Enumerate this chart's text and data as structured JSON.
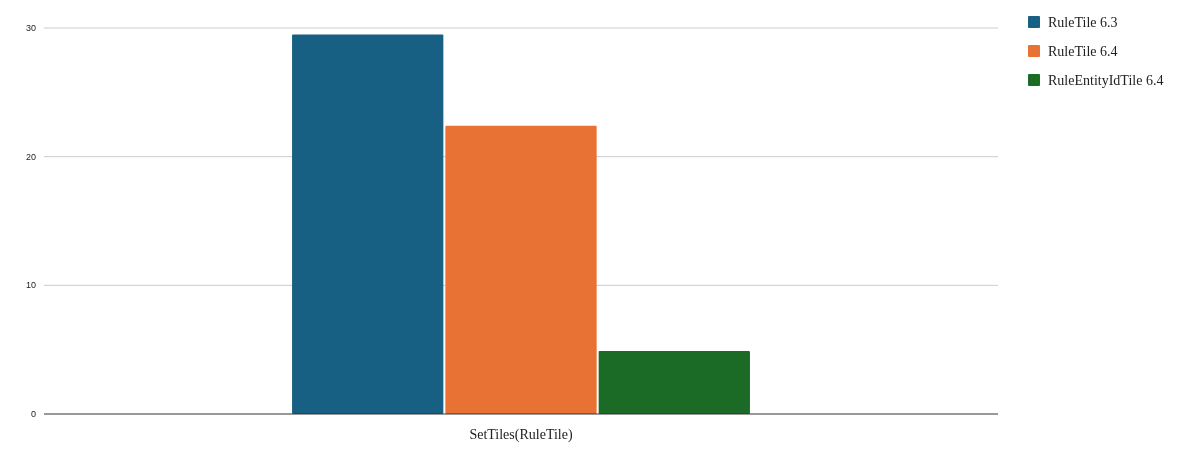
{
  "chart_data": {
    "type": "bar",
    "categories": [
      "SetTiles(RuleTile)"
    ],
    "series": [
      {
        "name": "RuleTile 6.3",
        "color": "#176083",
        "values": [
          29.5
        ]
      },
      {
        "name": "RuleTile 6.4",
        "color": "#e87233",
        "values": [
          22.4
        ]
      },
      {
        "name": "RuleEntityIdTile 6.4",
        "color": "#1b6b26",
        "values": [
          4.9
        ]
      }
    ],
    "ylim": [
      0,
      30
    ],
    "yticks": [
      0,
      10,
      20,
      30
    ],
    "grid": "y",
    "legend": "top right"
  }
}
